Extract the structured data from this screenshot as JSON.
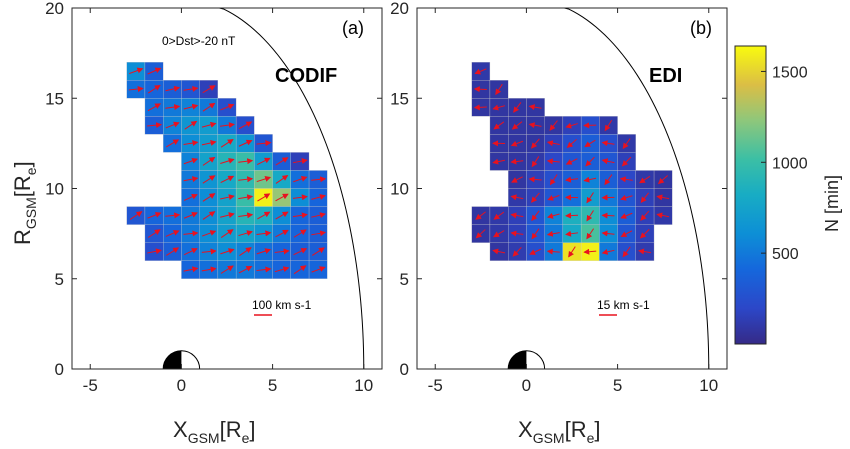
{
  "colorbar": {
    "label": "N [min]",
    "min": 0,
    "max": 1640,
    "ticks": [
      {
        "value": 500,
        "label": "500"
      },
      {
        "value": 1000,
        "label": "1000"
      },
      {
        "value": 1500,
        "label": "1500"
      }
    ]
  },
  "chart_data": [
    {
      "type": "heatmap",
      "panel_label": "(a)",
      "title": "CODIF",
      "annotation": "0>Dst>-20 nT",
      "xlabel_main": "X",
      "xlabel_sub": "GSM",
      "xlabel_unit": "[R",
      "xlabel_unit_sub": "e",
      "xlabel_close": "]",
      "ylabel_main": "R",
      "ylabel_sub": "GSM",
      "ylabel_unit": "[R",
      "ylabel_unit_sub": "e",
      "ylabel_close": "]",
      "xlim": [
        -6,
        11
      ],
      "ylim": [
        0,
        20
      ],
      "xticks": [
        -5,
        0,
        5,
        10
      ],
      "yticks": [
        0,
        5,
        10,
        15,
        20
      ],
      "cell_size": 1,
      "scale_label": "100 km s-1",
      "cells": [
        [
          -2.5,
          16.5,
          600
        ],
        [
          -2.5,
          15.5,
          450
        ],
        [
          -1.5,
          16.5,
          350
        ],
        [
          -1.5,
          15.5,
          400
        ],
        [
          -0.5,
          15.5,
          350
        ],
        [
          0.5,
          15.5,
          300
        ],
        [
          1.5,
          15.5,
          150
        ],
        [
          -1.5,
          14.5,
          450
        ],
        [
          -0.5,
          14.5,
          500
        ],
        [
          0.5,
          14.5,
          550
        ],
        [
          1.5,
          14.5,
          500
        ],
        [
          2.5,
          14.5,
          250
        ],
        [
          -1.5,
          13.5,
          350
        ],
        [
          -0.5,
          13.5,
          550
        ],
        [
          0.5,
          13.5,
          650
        ],
        [
          1.5,
          13.5,
          700
        ],
        [
          2.5,
          13.5,
          500
        ],
        [
          3.5,
          13.5,
          250
        ],
        [
          -0.5,
          12.5,
          450
        ],
        [
          0.5,
          12.5,
          600
        ],
        [
          1.5,
          12.5,
          700
        ],
        [
          2.5,
          12.5,
          800
        ],
        [
          3.5,
          12.5,
          650
        ],
        [
          4.5,
          12.5,
          300
        ],
        [
          0.5,
          11.5,
          550
        ],
        [
          1.5,
          11.5,
          750
        ],
        [
          2.5,
          11.5,
          900
        ],
        [
          3.5,
          11.5,
          1000
        ],
        [
          4.5,
          11.5,
          700
        ],
        [
          5.5,
          11.5,
          350
        ],
        [
          6.5,
          11.5,
          150
        ],
        [
          0.5,
          10.5,
          500
        ],
        [
          1.5,
          10.5,
          650
        ],
        [
          2.5,
          10.5,
          800
        ],
        [
          3.5,
          10.5,
          950
        ],
        [
          4.5,
          10.5,
          1150
        ],
        [
          5.5,
          10.5,
          800
        ],
        [
          6.5,
          10.5,
          450
        ],
        [
          7.5,
          10.5,
          350
        ],
        [
          0.5,
          9.5,
          450
        ],
        [
          1.5,
          9.5,
          600
        ],
        [
          2.5,
          9.5,
          750
        ],
        [
          3.5,
          9.5,
          1000
        ],
        [
          4.5,
          9.5,
          1600
        ],
        [
          5.5,
          9.5,
          1250
        ],
        [
          6.5,
          9.5,
          600
        ],
        [
          7.5,
          9.5,
          400
        ],
        [
          -2.5,
          8.5,
          300
        ],
        [
          -1.5,
          8.5,
          400
        ],
        [
          -0.5,
          8.5,
          450
        ],
        [
          0.5,
          8.5,
          500
        ],
        [
          1.5,
          8.5,
          600
        ],
        [
          2.5,
          8.5,
          750
        ],
        [
          3.5,
          8.5,
          900
        ],
        [
          4.5,
          8.5,
          850
        ],
        [
          5.5,
          8.5,
          600
        ],
        [
          6.5,
          8.5,
          400
        ],
        [
          7.5,
          8.5,
          350
        ],
        [
          -1.5,
          7.5,
          300
        ],
        [
          -0.5,
          7.5,
          400
        ],
        [
          0.5,
          7.5,
          500
        ],
        [
          1.5,
          7.5,
          600
        ],
        [
          2.5,
          7.5,
          700
        ],
        [
          3.5,
          7.5,
          750
        ],
        [
          4.5,
          7.5,
          650
        ],
        [
          5.5,
          7.5,
          500
        ],
        [
          6.5,
          7.5,
          400
        ],
        [
          7.5,
          7.5,
          350
        ],
        [
          -1.5,
          6.5,
          250
        ],
        [
          -0.5,
          6.5,
          350
        ],
        [
          0.5,
          6.5,
          450
        ],
        [
          1.5,
          6.5,
          550
        ],
        [
          2.5,
          6.5,
          600
        ],
        [
          3.5,
          6.5,
          550
        ],
        [
          4.5,
          6.5,
          450
        ],
        [
          5.5,
          6.5,
          400
        ],
        [
          6.5,
          6.5,
          350
        ],
        [
          7.5,
          6.5,
          350
        ],
        [
          0.5,
          5.5,
          400
        ],
        [
          1.5,
          5.5,
          450
        ],
        [
          2.5,
          5.5,
          500
        ],
        [
          3.5,
          5.5,
          500
        ],
        [
          4.5,
          5.5,
          450
        ],
        [
          5.5,
          5.5,
          400
        ],
        [
          6.5,
          5.5,
          400
        ],
        [
          7.5,
          5.5,
          400
        ]
      ]
    },
    {
      "type": "heatmap",
      "panel_label": "(b)",
      "title": "EDI",
      "annotation": "",
      "xlabel_main": "X",
      "xlabel_sub": "GSM",
      "xlabel_unit": "[R",
      "xlabel_unit_sub": "e",
      "xlabel_close": "]",
      "ylabel_main": "",
      "ylabel_sub": "",
      "ylabel_unit": "",
      "ylabel_unit_sub": "",
      "ylabel_close": "",
      "xlim": [
        -6,
        11
      ],
      "ylim": [
        0,
        20
      ],
      "xticks": [
        -5,
        0,
        5,
        10
      ],
      "yticks": [
        0,
        5,
        10,
        15,
        20
      ],
      "cell_size": 1,
      "scale_label": "15 km s-1",
      "cells": [
        [
          -2.5,
          16.5,
          100
        ],
        [
          -2.5,
          15.5,
          80
        ],
        [
          -1.5,
          15.5,
          80
        ],
        [
          -2.5,
          14.5,
          80
        ],
        [
          -1.5,
          14.5,
          80
        ],
        [
          -0.5,
          14.5,
          80
        ],
        [
          0.5,
          14.5,
          80
        ],
        [
          -1.5,
          13.5,
          80
        ],
        [
          -0.5,
          13.5,
          80
        ],
        [
          0.5,
          13.5,
          80
        ],
        [
          1.5,
          13.5,
          80
        ],
        [
          2.5,
          13.5,
          150
        ],
        [
          3.5,
          13.5,
          250
        ],
        [
          4.5,
          13.5,
          100
        ],
        [
          -1.5,
          12.5,
          80
        ],
        [
          -0.5,
          12.5,
          80
        ],
        [
          0.5,
          12.5,
          80
        ],
        [
          1.5,
          12.5,
          150
        ],
        [
          2.5,
          12.5,
          250
        ],
        [
          3.5,
          12.5,
          350
        ],
        [
          4.5,
          12.5,
          250
        ],
        [
          5.5,
          12.5,
          100
        ],
        [
          -1.5,
          11.5,
          80
        ],
        [
          -0.5,
          11.5,
          80
        ],
        [
          0.5,
          11.5,
          100
        ],
        [
          1.5,
          11.5,
          200
        ],
        [
          2.5,
          11.5,
          300
        ],
        [
          3.5,
          11.5,
          350
        ],
        [
          4.5,
          11.5,
          300
        ],
        [
          5.5,
          11.5,
          150
        ],
        [
          -0.5,
          10.5,
          80
        ],
        [
          0.5,
          10.5,
          150
        ],
        [
          1.5,
          10.5,
          250
        ],
        [
          2.5,
          10.5,
          350
        ],
        [
          3.5,
          10.5,
          550
        ],
        [
          4.5,
          10.5,
          350
        ],
        [
          5.5,
          10.5,
          200
        ],
        [
          6.5,
          10.5,
          100
        ],
        [
          7.5,
          10.5,
          80
        ],
        [
          -0.5,
          9.5,
          100
        ],
        [
          0.5,
          9.5,
          150
        ],
        [
          1.5,
          9.5,
          300
        ],
        [
          2.5,
          9.5,
          450
        ],
        [
          3.5,
          9.5,
          700
        ],
        [
          4.5,
          9.5,
          500
        ],
        [
          5.5,
          9.5,
          300
        ],
        [
          6.5,
          9.5,
          150
        ],
        [
          7.5,
          9.5,
          80
        ],
        [
          -2.5,
          8.5,
          80
        ],
        [
          -1.5,
          8.5,
          100
        ],
        [
          -0.5,
          8.5,
          150
        ],
        [
          0.5,
          8.5,
          300
        ],
        [
          1.5,
          8.5,
          550
        ],
        [
          2.5,
          8.5,
          850
        ],
        [
          3.5,
          8.5,
          950
        ],
        [
          4.5,
          8.5,
          600
        ],
        [
          5.5,
          8.5,
          350
        ],
        [
          6.5,
          8.5,
          150
        ],
        [
          7.5,
          8.5,
          100
        ],
        [
          -2.5,
          7.5,
          80
        ],
        [
          -1.5,
          7.5,
          100
        ],
        [
          -0.5,
          7.5,
          150
        ],
        [
          0.5,
          7.5,
          300
        ],
        [
          1.5,
          7.5,
          500
        ],
        [
          2.5,
          7.5,
          800
        ],
        [
          3.5,
          7.5,
          1050
        ],
        [
          4.5,
          7.5,
          600
        ],
        [
          5.5,
          7.5,
          300
        ],
        [
          6.5,
          7.5,
          150
        ],
        [
          -1.5,
          6.5,
          80
        ],
        [
          -0.5,
          6.5,
          120
        ],
        [
          0.5,
          6.5,
          250
        ],
        [
          1.5,
          6.5,
          500
        ],
        [
          2.5,
          6.5,
          1550
        ],
        [
          3.5,
          6.5,
          1600
        ],
        [
          4.5,
          6.5,
          500
        ],
        [
          5.5,
          6.5,
          250
        ],
        [
          6.5,
          6.5,
          120
        ]
      ]
    }
  ]
}
